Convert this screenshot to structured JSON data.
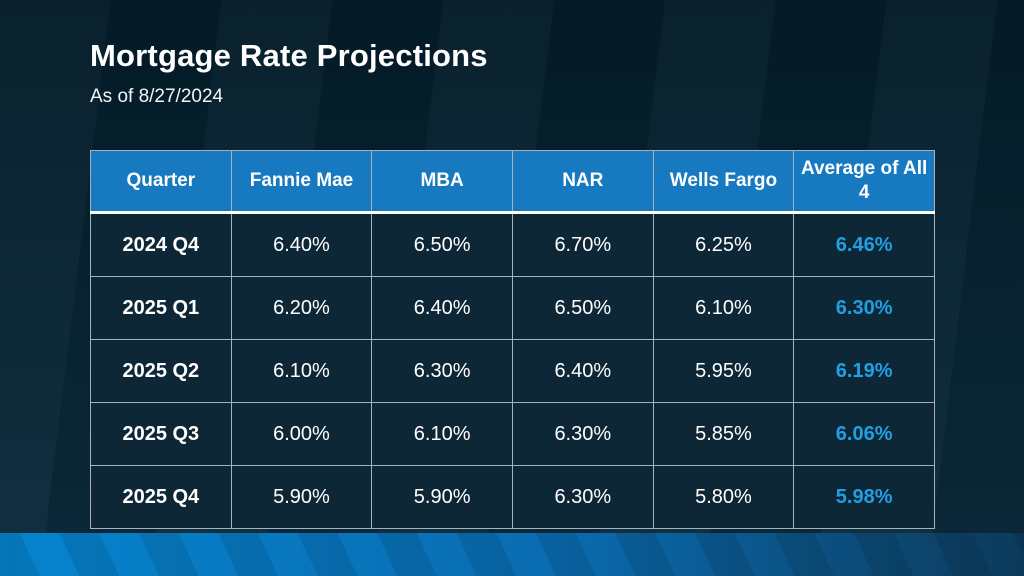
{
  "slide": {
    "title": "Mortgage Rate Projections",
    "subtitle": "As of 8/27/2024"
  },
  "table": {
    "columns": [
      "Quarter",
      "Fannie Mae",
      "MBA",
      "NAR",
      "Wells Fargo",
      "Average of All 4"
    ],
    "rows": [
      [
        "2024 Q4",
        "6.40%",
        "6.50%",
        "6.70%",
        "6.25%",
        "6.46%"
      ],
      [
        "2025 Q1",
        "6.20%",
        "6.40%",
        "6.50%",
        "6.10%",
        "6.30%"
      ],
      [
        "2025 Q2",
        "6.10%",
        "6.30%",
        "6.40%",
        "5.95%",
        "6.19%"
      ],
      [
        "2025 Q3",
        "6.00%",
        "6.10%",
        "6.30%",
        "5.85%",
        "6.06%"
      ],
      [
        "2025 Q4",
        "5.90%",
        "5.90%",
        "6.30%",
        "5.80%",
        "5.98%"
      ]
    ]
  },
  "colors": {
    "bg_top": "#041c28",
    "bg_bottom": "#0b2b3c",
    "header_bg": "#1779c0",
    "cell_bg": "#0e2737",
    "accent_text": "#219fe3",
    "stripe_left": "#0584ce",
    "stripe_right": "#0c3a5b"
  },
  "chart_data": {
    "type": "table",
    "title": "Mortgage Rate Projections",
    "subtitle": "As of 8/27/2024",
    "columns": [
      "Quarter",
      "Fannie Mae",
      "MBA",
      "NAR",
      "Wells Fargo",
      "Average of All 4"
    ],
    "rows": [
      [
        "2024 Q4",
        "6.40%",
        "6.50%",
        "6.70%",
        "6.25%",
        "6.46%"
      ],
      [
        "2025 Q1",
        "6.20%",
        "6.40%",
        "6.50%",
        "6.10%",
        "6.30%"
      ],
      [
        "2025 Q2",
        "6.10%",
        "6.30%",
        "6.40%",
        "5.95%",
        "6.19%"
      ],
      [
        "2025 Q3",
        "6.00%",
        "6.10%",
        "6.30%",
        "5.85%",
        "6.06%"
      ],
      [
        "2025 Q4",
        "5.90%",
        "5.90%",
        "6.30%",
        "5.80%",
        "5.98%"
      ]
    ],
    "notes": "Average of All 4 column rendered in bold blue accent; header row blue with white bold text"
  }
}
